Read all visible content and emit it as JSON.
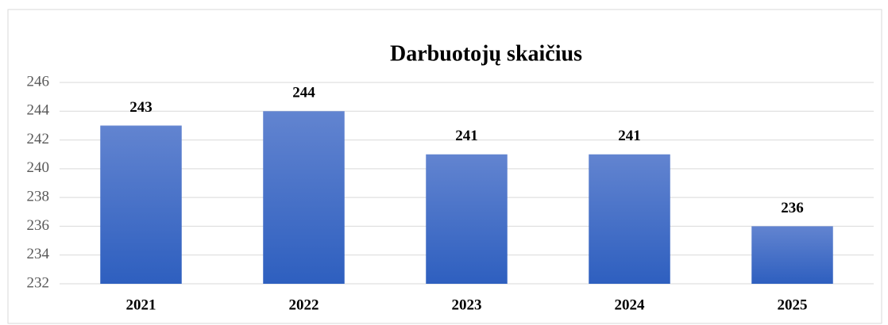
{
  "chart_data": {
    "type": "bar",
    "title": "Darbuotojų skaičius",
    "categories": [
      "2021",
      "2022",
      "2023",
      "2024",
      "2025"
    ],
    "values": [
      243,
      244,
      241,
      241,
      236
    ],
    "color": "#4472c4",
    "ylim": [
      232,
      246
    ],
    "yticks": [
      232,
      234,
      236,
      238,
      240,
      242,
      244,
      246
    ],
    "grid": true
  }
}
